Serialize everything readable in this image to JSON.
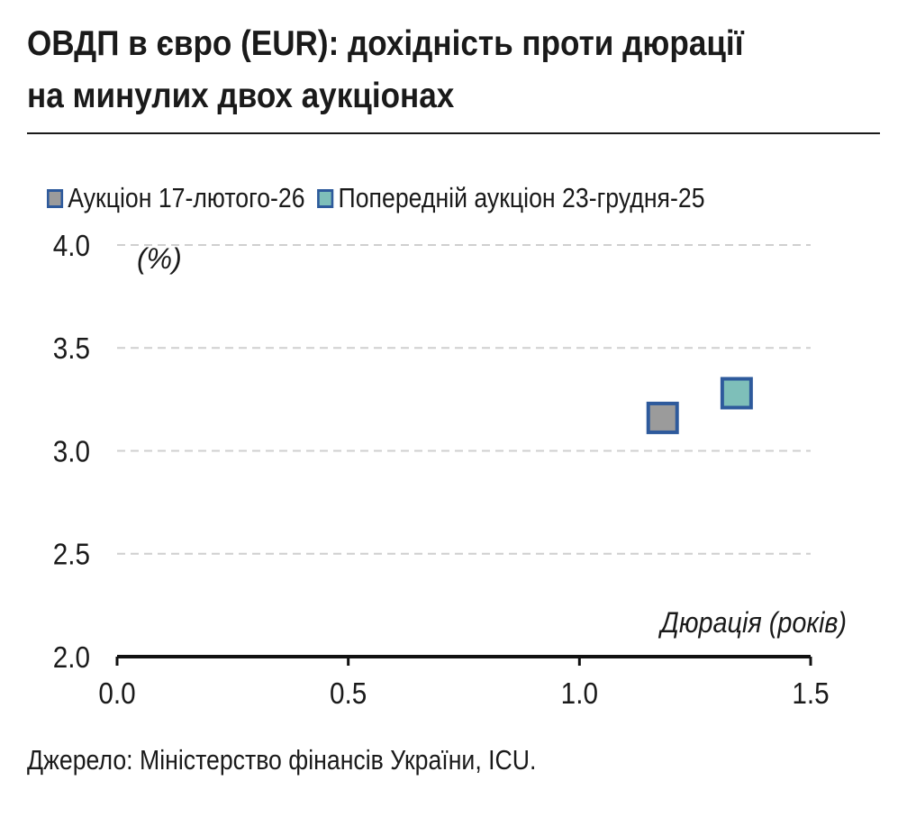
{
  "title": {
    "line1": "ОВДП в євро (EUR): дохідність проти дюрації",
    "line2": "на минулих двох аукціонах"
  },
  "source": "Джерело: Міністерство фінансів України, ICU.",
  "chart_data": {
    "type": "scatter",
    "xlabel": "Дюрація (років)",
    "ylabel": "(%)",
    "xlim": [
      0.0,
      1.5
    ],
    "ylim": [
      2.0,
      4.0
    ],
    "x_ticks": [
      "0.0",
      "0.5",
      "1.0",
      "1.5"
    ],
    "y_ticks": [
      "2.0",
      "2.5",
      "3.0",
      "3.5",
      "4.0"
    ],
    "grid": "horizontal dashed",
    "legend_position": "top",
    "marker": "square",
    "series": [
      {
        "name": "Аукціон 17-лютого-26",
        "color": "#9b9b9b",
        "edge": "#2e5a9c",
        "points": [
          {
            "x": 1.18,
            "y": 3.16
          }
        ]
      },
      {
        "name": "Попередній аукціон 23-грудня-25",
        "color": "#7ebfb9",
        "edge": "#2e5a9c",
        "points": [
          {
            "x": 1.34,
            "y": 3.28
          }
        ]
      }
    ]
  }
}
